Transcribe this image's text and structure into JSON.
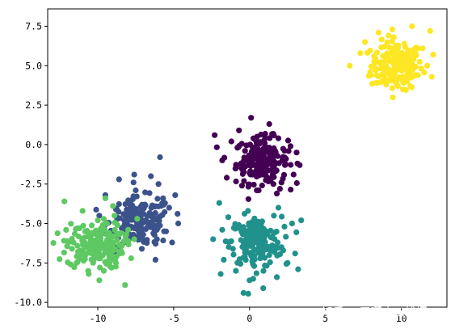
{
  "chart_data": {
    "type": "scatter",
    "title": "",
    "xlabel": "",
    "ylabel": "",
    "xlim": [
      -13.3,
      13.0
    ],
    "ylim": [
      -10.3,
      8.6
    ],
    "grid": false,
    "legend": "none",
    "x_ticks": [
      -10,
      -5,
      0,
      5,
      10
    ],
    "x_tick_labels": [
      "-10",
      "-5",
      "0",
      "5",
      "10"
    ],
    "y_ticks": [
      -10.0,
      -7.5,
      -5.0,
      -2.5,
      0.0,
      2.5,
      5.0,
      7.5
    ],
    "y_tick_labels": [
      "-10.0",
      "-7.5",
      "-5.0",
      "-2.5",
      "0.0",
      "2.5",
      "5.0",
      "7.5"
    ],
    "series": [
      {
        "color": "#fde725",
        "center": [
          9.7,
          5.0
        ],
        "spread": [
          1.0,
          0.9
        ],
        "points": [
          [
            6.6,
            5.0
          ],
          [
            7.3,
            5.8
          ],
          [
            7.6,
            6.5
          ],
          [
            8.0,
            4.4
          ],
          [
            8.2,
            5.6
          ],
          [
            8.5,
            7.1
          ],
          [
            8.7,
            4.9
          ],
          [
            8.9,
            6.2
          ],
          [
            9.0,
            3.8
          ],
          [
            9.2,
            5.3
          ],
          [
            9.3,
            4.6
          ],
          [
            9.5,
            6.8
          ],
          [
            9.6,
            5.9
          ],
          [
            9.8,
            4.2
          ],
          [
            9.9,
            5.1
          ],
          [
            10.1,
            3.5
          ],
          [
            10.2,
            6.4
          ],
          [
            10.4,
            5.5
          ],
          [
            10.5,
            4.7
          ],
          [
            10.7,
            7.5
          ],
          [
            10.9,
            5.8
          ],
          [
            11.1,
            4.4
          ],
          [
            11.4,
            6.1
          ],
          [
            11.7,
            5.0
          ],
          [
            11.9,
            7.2
          ],
          [
            12.1,
            5.7
          ],
          [
            12.0,
            4.3
          ],
          [
            8.4,
            3.9
          ],
          [
            9.4,
            7.3
          ],
          [
            10.6,
            3.7
          ]
        ]
      },
      {
        "color": "#440154",
        "center": [
          0.8,
          -1.0
        ],
        "spread": [
          1.0,
          0.85
        ],
        "points": [
          [
            -2.3,
            0.6
          ],
          [
            -1.8,
            -1.0
          ],
          [
            -1.5,
            -2.1
          ],
          [
            -1.2,
            0.2
          ],
          [
            -0.9,
            -1.5
          ],
          [
            -0.7,
            0.9
          ],
          [
            -0.5,
            -2.6
          ],
          [
            -0.3,
            -0.4
          ],
          [
            0.0,
            -1.8
          ],
          [
            0.1,
            1.7
          ],
          [
            0.3,
            -0.9
          ],
          [
            0.5,
            0.5
          ],
          [
            0.6,
            -2.9
          ],
          [
            0.8,
            -1.2
          ],
          [
            1.0,
            0.1
          ],
          [
            1.1,
            -2.0
          ],
          [
            1.3,
            1.3
          ],
          [
            1.5,
            -0.6
          ],
          [
            1.7,
            -1.7
          ],
          [
            1.9,
            0.4
          ],
          [
            2.1,
            -2.4
          ],
          [
            2.4,
            -0.9
          ],
          [
            2.7,
            -0.1
          ],
          [
            2.9,
            -1.9
          ],
          [
            3.1,
            -0.5
          ],
          [
            3.3,
            -1.3
          ],
          [
            -0.8,
            -0.2
          ],
          [
            2.0,
            -2.8
          ],
          [
            1.8,
            -3.1
          ]
        ]
      },
      {
        "color": "#3b528b",
        "center": [
          -7.2,
          -4.9
        ],
        "spread": [
          1.2,
          0.9
        ],
        "points": [
          [
            -9.9,
            -4.5
          ],
          [
            -9.5,
            -3.2
          ],
          [
            -9.1,
            -5.6
          ],
          [
            -8.8,
            -4.1
          ],
          [
            -8.6,
            -2.2
          ],
          [
            -8.4,
            -6.3
          ],
          [
            -8.2,
            -4.8
          ],
          [
            -8.0,
            -3.6
          ],
          [
            -7.8,
            -5.9
          ],
          [
            -7.5,
            -2.9
          ],
          [
            -7.3,
            -4.3
          ],
          [
            -7.1,
            -6.6
          ],
          [
            -6.9,
            -3.8
          ],
          [
            -6.7,
            -5.2
          ],
          [
            -6.5,
            -2.0
          ],
          [
            -6.3,
            -4.6
          ],
          [
            -6.1,
            -6.0
          ],
          [
            -5.9,
            -0.8
          ],
          [
            -5.7,
            -3.4
          ],
          [
            -5.5,
            -5.5
          ],
          [
            -5.3,
            -4.0
          ],
          [
            -5.1,
            -6.2
          ],
          [
            -4.9,
            -3.2
          ],
          [
            -4.7,
            -5.0
          ],
          [
            -6.2,
            -7.3
          ],
          [
            -8.9,
            -6.9
          ],
          [
            -7.6,
            -1.9
          ],
          [
            -6.0,
            -2.5
          ],
          [
            -7.0,
            -5.7
          ],
          [
            -8.3,
            -4.4
          ]
        ]
      },
      {
        "color": "#21918c",
        "center": [
          0.4,
          -6.2
        ],
        "spread": [
          1.0,
          0.95
        ],
        "points": [
          [
            -2.4,
            -6.0
          ],
          [
            -2.0,
            -3.7
          ],
          [
            -1.8,
            -5.4
          ],
          [
            -1.7,
            -7.3
          ],
          [
            -1.4,
            -4.6
          ],
          [
            -1.1,
            -6.6
          ],
          [
            -0.9,
            -8.0
          ],
          [
            -0.7,
            -5.1
          ],
          [
            -0.4,
            -9.4
          ],
          [
            -0.3,
            -6.7
          ],
          [
            -0.1,
            -4.2
          ],
          [
            0.1,
            -5.8
          ],
          [
            0.3,
            -7.7
          ],
          [
            0.5,
            -4.9
          ],
          [
            0.7,
            -6.3
          ],
          [
            0.9,
            -9.1
          ],
          [
            1.1,
            -5.5
          ],
          [
            1.3,
            -7.0
          ],
          [
            1.6,
            -4.5
          ],
          [
            1.8,
            -8.4
          ],
          [
            1.9,
            -4.0
          ],
          [
            2.1,
            -6.5
          ],
          [
            2.3,
            -5.2
          ],
          [
            2.5,
            -7.5
          ],
          [
            2.8,
            -5.0
          ],
          [
            3.0,
            -6.9
          ],
          [
            3.2,
            -7.9
          ],
          [
            3.4,
            -4.8
          ],
          [
            -1.9,
            -8.2
          ],
          [
            0.0,
            -8.6
          ]
        ]
      },
      {
        "color": "#5ec962",
        "center": [
          -10.2,
          -6.4
        ],
        "spread": [
          1.1,
          0.85
        ],
        "points": [
          [
            -12.2,
            -3.6
          ],
          [
            -11.6,
            -6.2
          ],
          [
            -11.4,
            -7.5
          ],
          [
            -11.2,
            -5.3
          ],
          [
            -11.0,
            -4.2
          ],
          [
            -10.8,
            -6.9
          ],
          [
            -10.6,
            -8.2
          ],
          [
            -10.4,
            -5.6
          ],
          [
            -10.2,
            -7.0
          ],
          [
            -10.0,
            -4.8
          ],
          [
            -9.8,
            -6.1
          ],
          [
            -9.6,
            -8.0
          ],
          [
            -9.4,
            -5.0
          ],
          [
            -9.2,
            -6.8
          ],
          [
            -9.0,
            -3.9
          ],
          [
            -8.8,
            -7.5
          ],
          [
            -8.6,
            -5.7
          ],
          [
            -8.4,
            -6.4
          ],
          [
            -8.2,
            -8.9
          ],
          [
            -8.0,
            -5.4
          ],
          [
            -7.8,
            -7.2
          ],
          [
            -7.6,
            -6.0
          ],
          [
            -7.4,
            -4.7
          ],
          [
            -9.9,
            -8.6
          ],
          [
            -10.9,
            -5.9
          ],
          [
            -11.7,
            -6.6
          ],
          [
            -9.5,
            -3.4
          ],
          [
            -8.9,
            -4.5
          ],
          [
            -10.3,
            -6.3
          ],
          [
            -9.1,
            -7.8
          ]
        ]
      }
    ]
  },
  "watermark": {
    "text": "知乎 @无啊应三线框"
  }
}
